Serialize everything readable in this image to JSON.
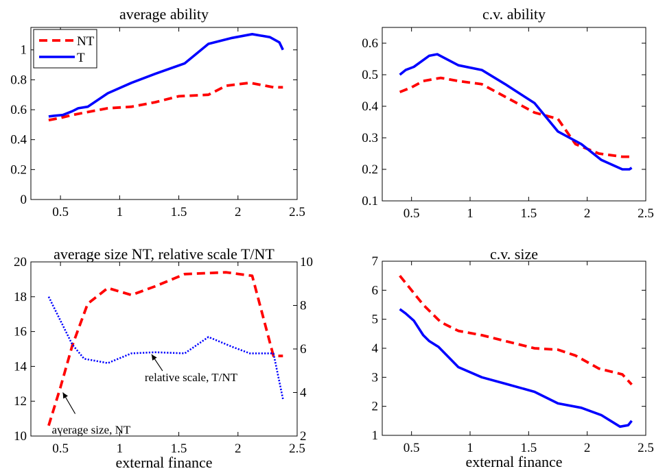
{
  "figure": {
    "colors": {
      "NT": "#ff0000",
      "T": "#0000ff",
      "ratio": "#0000ff",
      "axis": "#000000"
    }
  },
  "chart_data": [
    {
      "id": "p1",
      "type": "line",
      "title": "average ability",
      "xlabel": "",
      "ylabel": "",
      "xlim": [
        0.25,
        2.5
      ],
      "ylim": [
        0,
        1.15
      ],
      "xticks": [
        0.5,
        1,
        1.5,
        2,
        2.5
      ],
      "xtick_labels": [
        "0.5",
        "1",
        "1.5",
        "2",
        "2.5"
      ],
      "yticks": [
        0,
        0.2,
        0.4,
        0.6,
        0.8,
        1
      ],
      "ytick_labels": [
        "0",
        "0.2",
        "0.4",
        "0.6",
        "0.8",
        "1"
      ],
      "legend": {
        "placement": "top-left",
        "entries": [
          "NT",
          "T"
        ]
      },
      "series": [
        {
          "name": "NT",
          "style": "dashed",
          "color": "#ff0000",
          "x": [
            0.4,
            0.5,
            0.6,
            0.7,
            0.9,
            1.1,
            1.3,
            1.5,
            1.75,
            1.9,
            2.1,
            2.3,
            2.38
          ],
          "y": [
            0.53,
            0.545,
            0.565,
            0.58,
            0.61,
            0.62,
            0.65,
            0.69,
            0.7,
            0.76,
            0.78,
            0.75,
            0.75
          ]
        },
        {
          "name": "T",
          "style": "solid",
          "color": "#0000ff",
          "x": [
            0.4,
            0.45,
            0.52,
            0.6,
            0.65,
            0.73,
            0.9,
            1.1,
            1.3,
            1.55,
            1.75,
            1.95,
            2.12,
            2.27,
            2.35,
            2.38
          ],
          "y": [
            0.555,
            0.56,
            0.565,
            0.59,
            0.61,
            0.62,
            0.71,
            0.78,
            0.84,
            0.91,
            1.04,
            1.08,
            1.105,
            1.085,
            1.05,
            1.0
          ]
        }
      ]
    },
    {
      "id": "p2",
      "type": "line",
      "title": "c.v. ability",
      "xlabel": "",
      "ylabel": "",
      "xlim": [
        0.25,
        2.5
      ],
      "ylim": [
        0.1,
        0.65
      ],
      "xticks": [
        0.5,
        1,
        1.5,
        2,
        2.5
      ],
      "xtick_labels": [
        "0.5",
        "1",
        "1.5",
        "2",
        "2.5"
      ],
      "yticks": [
        0.1,
        0.2,
        0.3,
        0.4,
        0.5,
        0.6
      ],
      "ytick_labels": [
        "0.1",
        "0.2",
        "0.3",
        "0.4",
        "0.5",
        "0.6"
      ],
      "series": [
        {
          "name": "NT",
          "style": "dashed",
          "color": "#ff0000",
          "x": [
            0.4,
            0.5,
            0.6,
            0.75,
            0.9,
            1.1,
            1.3,
            1.55,
            1.75,
            1.9,
            2.1,
            2.3,
            2.38
          ],
          "y": [
            0.445,
            0.46,
            0.48,
            0.49,
            0.48,
            0.47,
            0.43,
            0.38,
            0.36,
            0.28,
            0.25,
            0.24,
            0.24
          ]
        },
        {
          "name": "T",
          "style": "solid",
          "color": "#0000ff",
          "x": [
            0.4,
            0.45,
            0.52,
            0.65,
            0.72,
            0.9,
            1.1,
            1.3,
            1.55,
            1.75,
            1.95,
            2.12,
            2.3,
            2.36,
            2.38
          ],
          "y": [
            0.5,
            0.515,
            0.525,
            0.56,
            0.565,
            0.53,
            0.515,
            0.47,
            0.41,
            0.32,
            0.28,
            0.23,
            0.2,
            0.2,
            0.205
          ]
        }
      ]
    },
    {
      "id": "p3",
      "type": "line",
      "title": "average size NT, relative scale T/NT",
      "xlabel": "external finance",
      "ylabel": "",
      "xlim": [
        0.25,
        2.5
      ],
      "ylim": [
        10,
        20
      ],
      "y2lim": [
        2,
        10
      ],
      "xticks": [
        0.5,
        1,
        1.5,
        2,
        2.5
      ],
      "xtick_labels": [
        "0.5",
        "1",
        "1.5",
        "2",
        "2.5"
      ],
      "yticks": [
        10,
        12,
        14,
        16,
        18,
        20
      ],
      "ytick_labels": [
        "10",
        "12",
        "14",
        "16",
        "18",
        "20"
      ],
      "y2ticks": [
        2,
        4,
        6,
        8,
        10
      ],
      "y2tick_labels": [
        "2",
        "4",
        "6",
        "8",
        "10"
      ],
      "annotations": [
        {
          "text": "relative scale, T/NT",
          "target_x": 1.27,
          "target_y2": 5.75
        },
        {
          "text": "average size, NT",
          "target_x": 0.52,
          "target_y": 12.5
        }
      ],
      "series": [
        {
          "name": "NT",
          "axis": "left",
          "style": "dashed",
          "color": "#ff0000",
          "x": [
            0.4,
            0.5,
            0.6,
            0.73,
            0.9,
            1.1,
            1.3,
            1.55,
            1.9,
            2.12,
            2.3,
            2.38
          ],
          "y": [
            10.6,
            12.8,
            15.2,
            17.6,
            18.5,
            18.1,
            18.6,
            19.3,
            19.4,
            19.2,
            14.6,
            14.6
          ]
        },
        {
          "name": "T/NT",
          "axis": "right",
          "style": "dotted",
          "color": "#0000ff",
          "x": [
            0.4,
            0.5,
            0.6,
            0.7,
            0.9,
            1.1,
            1.3,
            1.55,
            1.75,
            1.95,
            2.1,
            2.3,
            2.38
          ],
          "y": [
            8.4,
            7.3,
            6.2,
            5.55,
            5.35,
            5.8,
            5.85,
            5.8,
            6.55,
            6.1,
            5.8,
            5.8,
            3.7
          ]
        }
      ]
    },
    {
      "id": "p4",
      "type": "line",
      "title": "c.v. size",
      "xlabel": "external finance",
      "ylabel": "",
      "xlim": [
        0.25,
        2.5
      ],
      "ylim": [
        1,
        7
      ],
      "xticks": [
        0.5,
        1,
        1.5,
        2,
        2.5
      ],
      "xtick_labels": [
        "0.5",
        "1",
        "1.5",
        "2",
        "2.5"
      ],
      "yticks": [
        1,
        2,
        3,
        4,
        5,
        6,
        7
      ],
      "ytick_labels": [
        "1",
        "2",
        "3",
        "4",
        "5",
        "6",
        "7"
      ],
      "series": [
        {
          "name": "NT",
          "style": "dashed",
          "color": "#ff0000",
          "x": [
            0.4,
            0.5,
            0.6,
            0.75,
            0.9,
            1.1,
            1.3,
            1.55,
            1.75,
            1.9,
            2.1,
            2.3,
            2.38
          ],
          "y": [
            6.5,
            6.0,
            5.5,
            4.9,
            4.6,
            4.45,
            4.25,
            4.0,
            3.95,
            3.75,
            3.3,
            3.1,
            2.75
          ]
        },
        {
          "name": "T",
          "style": "solid",
          "color": "#0000ff",
          "x": [
            0.4,
            0.45,
            0.52,
            0.6,
            0.65,
            0.73,
            0.9,
            1.1,
            1.3,
            1.55,
            1.75,
            1.95,
            2.12,
            2.28,
            2.35,
            2.38
          ],
          "y": [
            5.35,
            5.2,
            4.95,
            4.45,
            4.25,
            4.05,
            3.35,
            3.0,
            2.78,
            2.5,
            2.1,
            1.95,
            1.7,
            1.3,
            1.35,
            1.5
          ]
        }
      ]
    }
  ]
}
